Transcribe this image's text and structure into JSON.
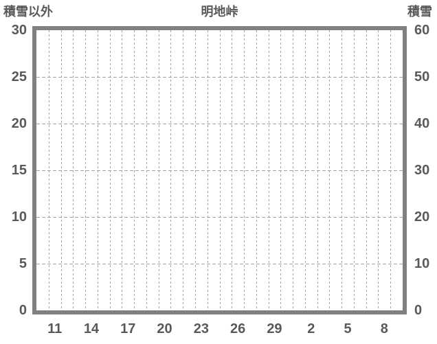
{
  "chart_data": {
    "type": "line",
    "title": "明地峠",
    "series": [],
    "plot_is_empty": true,
    "left_axis": {
      "title": "積雪以外",
      "min": 0,
      "max": 30,
      "step": 5,
      "ticks": [
        "30",
        "25",
        "20",
        "15",
        "10",
        "5",
        "0"
      ]
    },
    "right_axis": {
      "title": "積雪",
      "min": 0,
      "max": 60,
      "step": 10,
      "ticks": [
        "60",
        "50",
        "40",
        "30",
        "20",
        "10",
        "0"
      ]
    },
    "x_axis": {
      "num_categories": 30,
      "tick_labels": [
        "11",
        "14",
        "17",
        "20",
        "23",
        "26",
        "29",
        "2",
        "5",
        "8"
      ],
      "tick_indices": [
        1,
        4,
        7,
        10,
        13,
        16,
        19,
        22,
        25,
        28
      ]
    },
    "grid": {
      "vertical_lines": 29,
      "horizontal_lines": 5,
      "style": "dashed",
      "legend": "none"
    },
    "colors": {
      "background": "#ffffff",
      "border": "#808080",
      "text": "#595959",
      "gridline": "#a3a3a3"
    }
  }
}
